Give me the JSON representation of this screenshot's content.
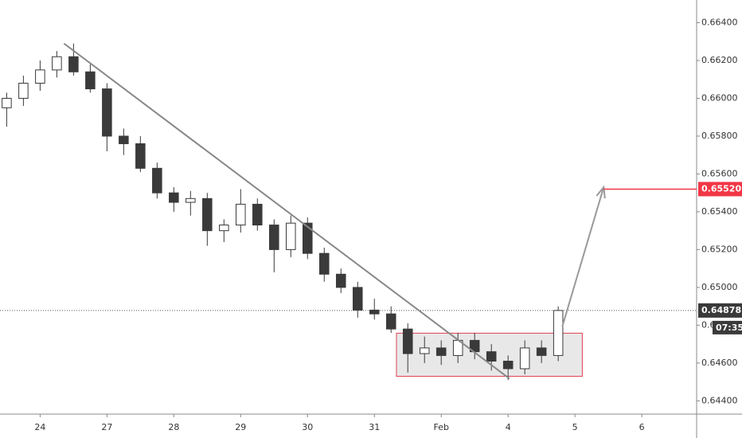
{
  "chart_data": {
    "type": "candlestick",
    "x": [
      -0.5,
      -0.25,
      0,
      0.25,
      0.5,
      0.75,
      1,
      1.25,
      1.5,
      1.75,
      2,
      2.25,
      2.5,
      2.75,
      3,
      3.25,
      3.5,
      3.75,
      4,
      4.25,
      4.5,
      4.75,
      5,
      5.25,
      5.5,
      5.75,
      6,
      6.25,
      6.5,
      6.75,
      7,
      7.25,
      7.5,
      7.75
    ],
    "open": [
      0.6595,
      0.66,
      0.6608,
      0.6615,
      0.6622,
      0.6614,
      0.6605,
      0.658,
      0.6576,
      0.6563,
      0.655,
      0.6545,
      0.6547,
      0.653,
      0.6533,
      0.6544,
      0.6533,
      0.652,
      0.6534,
      0.6518,
      0.6507,
      0.65,
      0.6488,
      0.6486,
      0.6478,
      0.6465,
      0.6468,
      0.6464,
      0.6472,
      0.6466,
      0.6461,
      0.6457,
      0.6468,
      0.6464
    ],
    "high": [
      0.6603,
      0.6612,
      0.662,
      0.6625,
      0.6629,
      0.6618,
      0.6608,
      0.6584,
      0.658,
      0.6566,
      0.6553,
      0.6551,
      0.655,
      0.6536,
      0.6552,
      0.6547,
      0.6536,
      0.6538,
      0.6537,
      0.6521,
      0.651,
      0.6503,
      0.6494,
      0.649,
      0.6481,
      0.6474,
      0.6472,
      0.6476,
      0.6476,
      0.647,
      0.6464,
      0.6472,
      0.6472,
      0.649
    ],
    "low": [
      0.6585,
      0.6596,
      0.6604,
      0.6611,
      0.6612,
      0.6603,
      0.6572,
      0.657,
      0.6561,
      0.6547,
      0.654,
      0.6538,
      0.6522,
      0.6524,
      0.6529,
      0.653,
      0.6508,
      0.6516,
      0.6515,
      0.6503,
      0.6497,
      0.6484,
      0.6483,
      0.6476,
      0.6455,
      0.646,
      0.6459,
      0.646,
      0.6462,
      0.6456,
      0.6451,
      0.6454,
      0.646,
      0.6461
    ],
    "close": [
      0.66,
      0.6608,
      0.6615,
      0.6622,
      0.6614,
      0.6605,
      0.658,
      0.6576,
      0.6563,
      0.655,
      0.6545,
      0.6547,
      0.653,
      0.6533,
      0.6544,
      0.6533,
      0.652,
      0.6534,
      0.6518,
      0.6507,
      0.65,
      0.6488,
      0.6486,
      0.6478,
      0.6465,
      0.6468,
      0.6464,
      0.6472,
      0.6466,
      0.6461,
      0.6457,
      0.6468,
      0.6464,
      0.64878
    ],
    "xlim": [
      -0.6,
      9.82
    ],
    "ylim": [
      0.6433,
      0.6652
    ],
    "xticks": [
      {
        "value": 0,
        "label": "24"
      },
      {
        "value": 1,
        "label": "27"
      },
      {
        "value": 2,
        "label": "28"
      },
      {
        "value": 3,
        "label": "29"
      },
      {
        "value": 4,
        "label": "30"
      },
      {
        "value": 5,
        "label": "31"
      },
      {
        "value": 6,
        "label": "Feb"
      },
      {
        "value": 7,
        "label": "4"
      },
      {
        "value": 8,
        "label": "5"
      },
      {
        "value": 9,
        "label": "6"
      }
    ],
    "yticks": [
      {
        "value": 0.644,
        "label": "0.64400"
      },
      {
        "value": 0.646,
        "label": "0.64600"
      },
      {
        "value": 0.648,
        "label": "0.64800"
      },
      {
        "value": 0.65,
        "label": "0.65000"
      },
      {
        "value": 0.652,
        "label": "0.65200"
      },
      {
        "value": 0.654,
        "label": "0.65400"
      },
      {
        "value": 0.656,
        "label": "0.65600"
      },
      {
        "value": 0.658,
        "label": "0.65800"
      },
      {
        "value": 0.66,
        "label": "0.66000"
      },
      {
        "value": 0.662,
        "label": "0.66200"
      },
      {
        "value": 0.664,
        "label": "0.66400"
      }
    ],
    "up_color": "#ffffff",
    "down_color": "#3a3a3a",
    "trendline": {
      "x": [
        0.357,
        7.02
      ],
      "y": [
        0.6629,
        0.64518
      ]
    },
    "range_box": {
      "x": [
        5.33,
        8.11
      ],
      "y": [
        0.64758,
        0.6453
      ]
    },
    "arrow": {
      "x": [
        7.81,
        8.43
      ],
      "y": [
        0.64792,
        0.6553
      ]
    },
    "target": {
      "value": 0.6552,
      "label": "0.65520",
      "color": "#f23645"
    },
    "last_price": {
      "value": 0.64878,
      "label": "0.64878"
    },
    "countdown": "07:35"
  }
}
